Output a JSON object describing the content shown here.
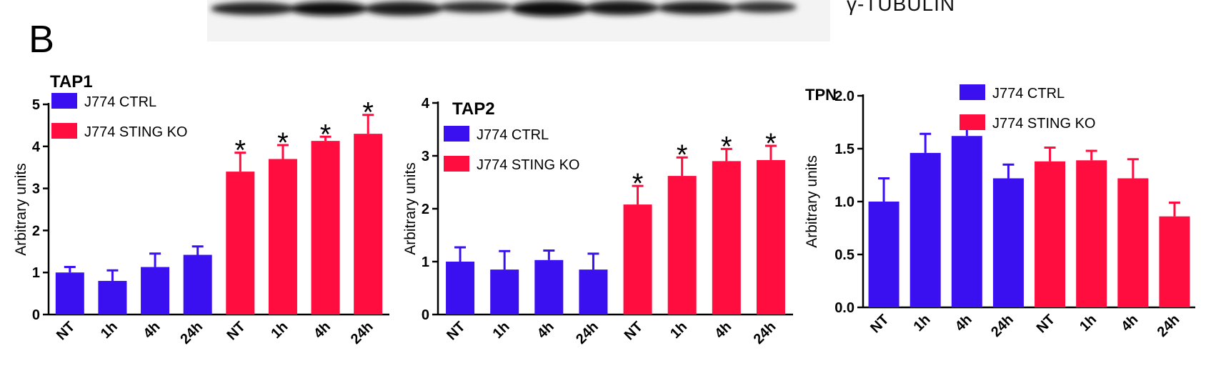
{
  "figure": {
    "panel_letter": "B",
    "blot_label": "γ-TUBULIN",
    "colors": {
      "ctrl": "#3b10f0",
      "ko": "#ff0d3e"
    }
  },
  "chart_data": [
    {
      "type": "bar",
      "title": "TAP1",
      "ylabel": "Arbitrary units",
      "ylim": [
        0,
        5
      ],
      "yticks": [
        "0",
        "1",
        "2",
        "3",
        "4",
        "5"
      ],
      "categories": [
        "NT",
        "1h",
        "4h",
        "24h",
        "NT",
        "1h",
        "4h",
        "24h"
      ],
      "legend": [
        "J774 CTRL",
        "J774 STING KO"
      ],
      "legend_position": "top-left",
      "series": [
        {
          "name": "J774 CTRL",
          "color": "#3b10f0",
          "values": [
            1.0,
            0.8,
            1.13,
            1.42,
            null,
            null,
            null,
            null
          ],
          "errors": [
            0.13,
            0.25,
            0.32,
            0.2,
            null,
            null,
            null,
            null
          ],
          "significance": [
            "",
            "",
            "",
            "",
            "",
            "",
            "",
            ""
          ]
        },
        {
          "name": "J774 STING KO",
          "color": "#ff0d3e",
          "values": [
            null,
            null,
            null,
            null,
            3.4,
            3.7,
            4.13,
            4.3
          ],
          "errors": [
            null,
            null,
            null,
            null,
            0.45,
            0.33,
            0.1,
            0.45
          ],
          "significance": [
            "",
            "",
            "",
            "",
            "*",
            "*",
            "*",
            "*"
          ]
        }
      ]
    },
    {
      "type": "bar",
      "title": "TAP2",
      "ylabel": "Arbitrary units",
      "ylim": [
        0,
        4
      ],
      "yticks": [
        "0",
        "1",
        "2",
        "3",
        "4"
      ],
      "categories": [
        "NT",
        "1h",
        "4h",
        "24h",
        "NT",
        "1h",
        "4h",
        "24h"
      ],
      "legend": [
        "J774 CTRL",
        "J774 STING KO"
      ],
      "legend_position": "top-left",
      "series": [
        {
          "name": "J774 CTRL",
          "color": "#3b10f0",
          "values": [
            1.0,
            0.85,
            1.03,
            0.85,
            null,
            null,
            null,
            null
          ],
          "errors": [
            0.27,
            0.35,
            0.18,
            0.3,
            null,
            null,
            null,
            null
          ],
          "significance": [
            "",
            "",
            "",
            "",
            "",
            "",
            "",
            ""
          ]
        },
        {
          "name": "J774 STING KO",
          "color": "#ff0d3e",
          "values": [
            null,
            null,
            null,
            null,
            2.08,
            2.62,
            2.9,
            2.92
          ],
          "errors": [
            null,
            null,
            null,
            null,
            0.35,
            0.35,
            0.23,
            0.27
          ],
          "significance": [
            "",
            "",
            "",
            "",
            "*",
            "*",
            "*",
            "*"
          ]
        }
      ]
    },
    {
      "type": "bar",
      "title": "TPN",
      "ylabel": "Arbitrary units",
      "ylim": [
        0,
        2.0
      ],
      "yticks": [
        "0.0",
        "0.5",
        "1.0",
        "1.5",
        "2.0"
      ],
      "categories": [
        "NT",
        "1h",
        "4h",
        "24h",
        "NT",
        "1h",
        "4h",
        "24h"
      ],
      "legend": [
        "J774 CTRL",
        "J774 STING KO"
      ],
      "legend_position": "top-right",
      "series": [
        {
          "name": "J774 CTRL",
          "color": "#3b10f0",
          "values": [
            1.0,
            1.46,
            1.62,
            1.22,
            null,
            null,
            null,
            null
          ],
          "errors": [
            0.22,
            0.18,
            0.12,
            0.13,
            null,
            null,
            null,
            null
          ],
          "significance": [
            "",
            "",
            "",
            "",
            "",
            "",
            "",
            ""
          ]
        },
        {
          "name": "J774 STING KO",
          "color": "#ff0d3e",
          "values": [
            null,
            null,
            null,
            null,
            1.38,
            1.39,
            1.22,
            0.86
          ],
          "errors": [
            null,
            null,
            null,
            null,
            0.13,
            0.09,
            0.18,
            0.13
          ],
          "significance": [
            "",
            "",
            "",
            "",
            "",
            "",
            "",
            ""
          ]
        }
      ]
    }
  ]
}
